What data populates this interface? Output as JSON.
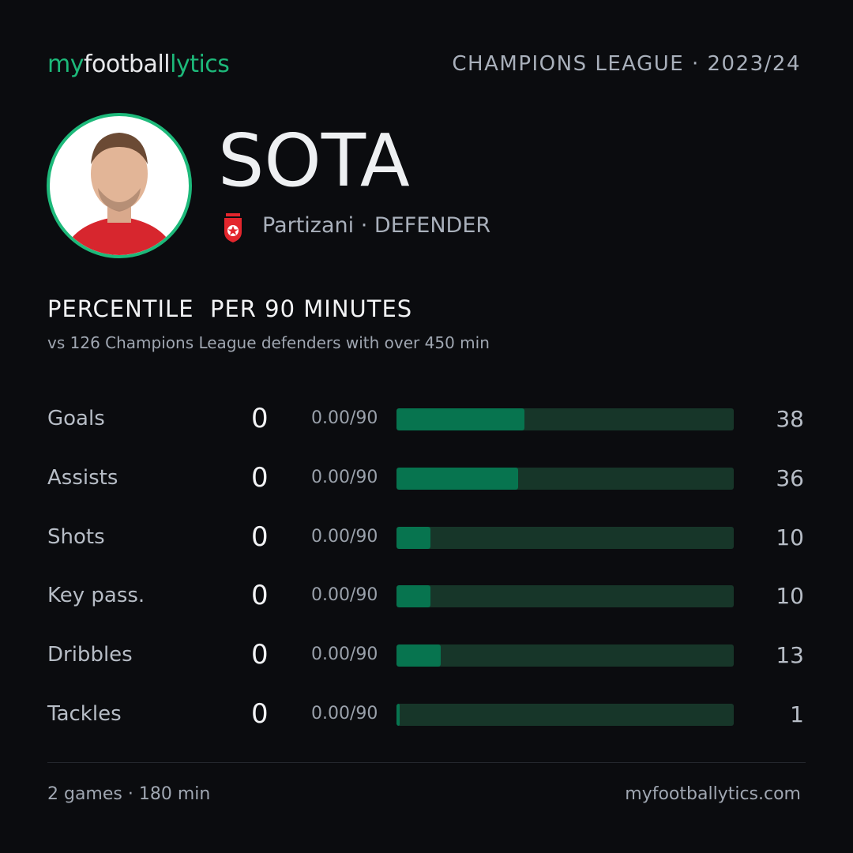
{
  "header": {
    "brand": [
      "my",
      "football",
      "lytics"
    ],
    "competition": "CHAMPIONS LEAGUE · 2023/24"
  },
  "player": {
    "name": "SOTA",
    "club": "Partizani",
    "position": "· DEFENDER"
  },
  "section": {
    "title": "PERCENTILE  PER 90 MINUTES",
    "subtitle": "vs 126 Champions League defenders with over 450 min"
  },
  "stats": {
    "xlim": [
      0,
      100
    ],
    "rows": [
      {
        "label": "Goals",
        "count": 0,
        "per90": "0.00/90",
        "percentile": 38
      },
      {
        "label": "Assists",
        "count": 0,
        "per90": "0.00/90",
        "percentile": 36
      },
      {
        "label": "Shots",
        "count": 0,
        "per90": "0.00/90",
        "percentile": 10
      },
      {
        "label": "Key pass.",
        "count": 0,
        "per90": "0.00/90",
        "percentile": 10
      },
      {
        "label": "Dribbles",
        "count": 0,
        "per90": "0.00/90",
        "percentile": 13
      },
      {
        "label": "Tackles",
        "count": 0,
        "per90": "0.00/90",
        "percentile": 1
      }
    ]
  },
  "footer": {
    "games": "2 games · 180 min",
    "site": "myfootballytics.com"
  }
}
